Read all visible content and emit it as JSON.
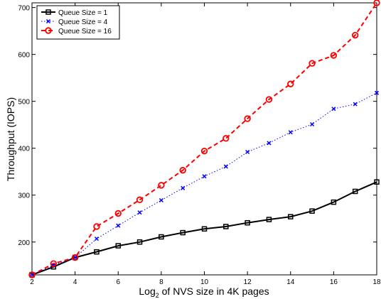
{
  "chart_data": {
    "type": "line",
    "x": [
      2,
      3,
      4,
      5,
      6,
      7,
      8,
      9,
      10,
      11,
      12,
      13,
      14,
      15,
      16,
      17,
      18
    ],
    "xlabel_main": "Log",
    "xlabel_sub": "2",
    "xlabel_rest": " of NVS size in 4K pages",
    "ylabel": "Throughput (IOPS)",
    "xlim": [
      2,
      18
    ],
    "ylim": [
      130,
      710
    ],
    "xticks": [
      2,
      4,
      6,
      8,
      10,
      12,
      14,
      16,
      18
    ],
    "yticks": [
      200,
      300,
      400,
      500,
      600,
      700
    ],
    "grid": false,
    "legend_position": "top-left",
    "series": [
      {
        "name": "Queue Size = 1",
        "color": "#000000",
        "line_style": "solid",
        "marker": "square",
        "values": [
          130,
          147,
          167,
          179,
          192,
          200,
          211,
          220,
          228,
          233,
          241,
          248,
          254,
          266,
          285,
          308,
          328
        ]
      },
      {
        "name": "Queue Size = 4",
        "color": "#0000ff",
        "line_style": "dotted",
        "marker": "x",
        "values": [
          130,
          150,
          167,
          207,
          235,
          263,
          289,
          315,
          340,
          361,
          392,
          411,
          434,
          451,
          484,
          494,
          518
        ]
      },
      {
        "name": "Queue Size = 16",
        "color": "#ff0000",
        "line_style": "dashed",
        "marker": "circle",
        "values": [
          130,
          154,
          167,
          233,
          261,
          290,
          321,
          353,
          394,
          421,
          463,
          504,
          537,
          581,
          598,
          641,
          710
        ]
      }
    ]
  }
}
